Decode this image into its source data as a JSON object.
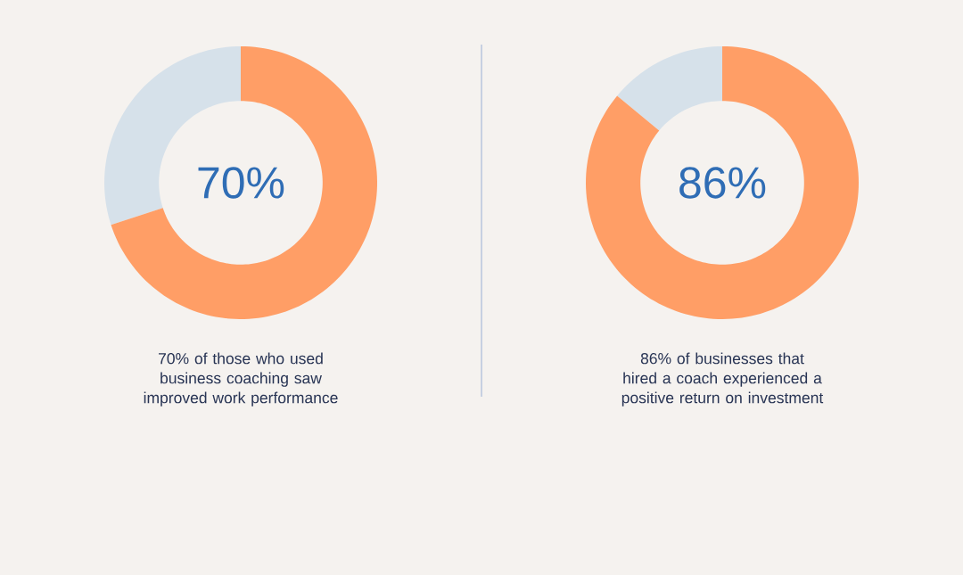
{
  "chart_data": [
    {
      "type": "donut",
      "categories": [
        null,
        null
      ],
      "values": [
        70,
        30
      ],
      "colors": [
        "#ff9e66",
        "#d6e1ea"
      ],
      "annotations": [
        "70%",
        "70% of those who used business coaching saw improved work performance"
      ]
    },
    {
      "type": "donut",
      "categories": [
        null,
        null
      ],
      "values": [
        86,
        14
      ],
      "colors": [
        "#ff9e66",
        "#d6e1ea"
      ],
      "annotations": [
        "86%",
        "86% of businesses that hired a coach experienced a positive return on investment"
      ]
    }
  ]
}
